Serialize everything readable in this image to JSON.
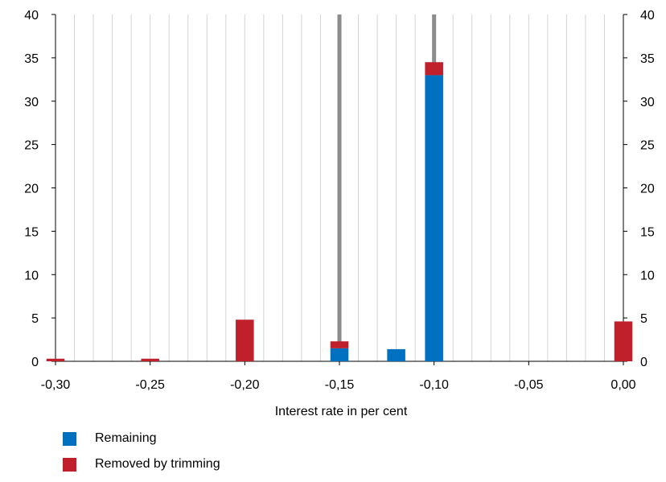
{
  "chart_data": {
    "type": "bar",
    "stacked": true,
    "xlabel": "Interest rate in per cent",
    "ylabel": "",
    "ylim": [
      0,
      40
    ],
    "y_ticks": [
      0,
      5,
      10,
      15,
      20,
      25,
      30,
      35,
      40
    ],
    "xlim": [
      -0.3,
      0.0
    ],
    "x_ticks": [
      -0.3,
      -0.25,
      -0.2,
      -0.15,
      -0.1,
      -0.05,
      0.0
    ],
    "x_tick_labels": [
      "-0,30",
      "-0,25",
      "-0,20",
      "-0,15",
      "-0,10",
      "-0,05",
      "0,00"
    ],
    "bin_width": 0.01,
    "grid": "vertical",
    "secondary_y_axis": true,
    "vertical_markers_x": [
      -0.15,
      -0.1
    ],
    "series": [
      {
        "name": "Remaining",
        "color": "#0070c0",
        "x": [
          -0.15,
          -0.12,
          -0.1
        ],
        "values": [
          1.5,
          1.4,
          33.0
        ]
      },
      {
        "name": "Removed by trimming",
        "color": "#c0202c",
        "x": [
          -0.3,
          -0.25,
          -0.2,
          -0.15,
          -0.1,
          0.0
        ],
        "values": [
          0.3,
          0.3,
          4.8,
          0.8,
          1.5,
          4.6
        ]
      }
    ],
    "marker_color": "#8c8c8c",
    "legend_position": "bottom-left"
  }
}
